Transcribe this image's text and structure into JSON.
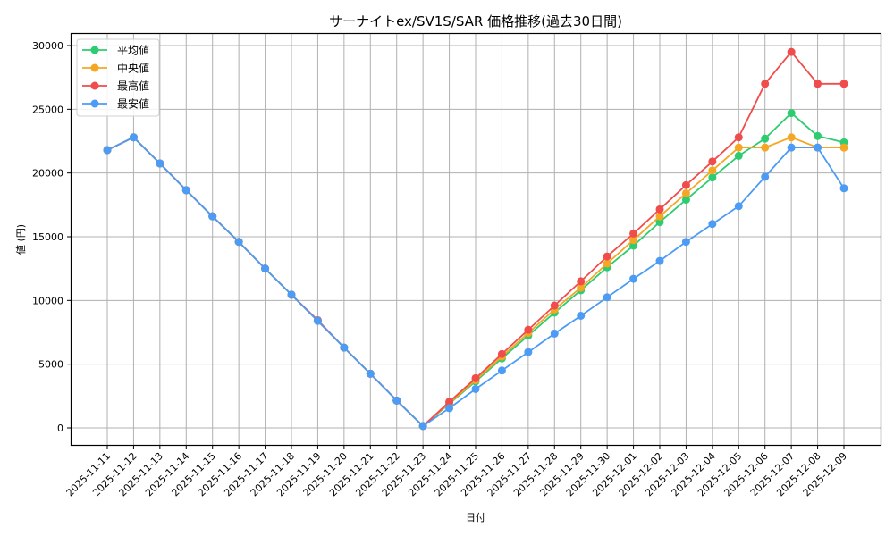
{
  "chart_data": {
    "type": "line",
    "title": "サーナイトex/SV1S/SAR 価格推移(過去30日間)",
    "xlabel": "日付",
    "ylabel": "値 (円)",
    "ylim": [
      -1300,
      31000
    ],
    "yticks": [
      0,
      5000,
      10000,
      15000,
      20000,
      25000,
      30000
    ],
    "grid": true,
    "legend_position": "upper left",
    "x": [
      "2025-11-11",
      "2025-11-12",
      "2025-11-13",
      "2025-11-14",
      "2025-11-15",
      "2025-11-16",
      "2025-11-17",
      "2025-11-18",
      "2025-11-19",
      "2025-11-20",
      "2025-11-21",
      "2025-11-22",
      "2025-11-23",
      "2025-11-24",
      "2025-11-25",
      "2025-11-26",
      "2025-11-27",
      "2025-11-28",
      "2025-11-29",
      "2025-11-30",
      "2025-12-01",
      "2025-12-02",
      "2025-12-03",
      "2025-12-04",
      "2025-12-05",
      "2025-12-06",
      "2025-12-07",
      "2025-12-08",
      "2025-12-09"
    ],
    "series": [
      {
        "name": "平均値",
        "color": "#2ecc71",
        "values": [
          21800,
          22800,
          20750,
          18650,
          16600,
          14600,
          12500,
          10450,
          8400,
          6300,
          4250,
          2150,
          150,
          1900,
          3650,
          5450,
          7250,
          9050,
          10800,
          12600,
          14300,
          16150,
          17900,
          19650,
          21350,
          22700,
          24700,
          22900,
          22400
        ]
      },
      {
        "name": "中央値",
        "color": "#f5a623",
        "values": [
          21800,
          22800,
          20750,
          18650,
          16600,
          14600,
          12500,
          10450,
          8400,
          6300,
          4250,
          2150,
          150,
          1950,
          3750,
          5600,
          7450,
          9300,
          11000,
          12900,
          14750,
          16600,
          18400,
          20200,
          22000,
          22000,
          22800,
          22000,
          22000
        ]
      },
      {
        "name": "最高値",
        "color": "#f04c4c",
        "values": [
          21800,
          22800,
          20750,
          18650,
          16600,
          14600,
          12500,
          10450,
          8450,
          6300,
          4250,
          2150,
          150,
          2050,
          3900,
          5800,
          7700,
          9600,
          11500,
          13450,
          15250,
          17150,
          19050,
          20900,
          22800,
          27000,
          29500,
          27000,
          27000
        ]
      },
      {
        "name": "最安値",
        "color": "#4c9bf5",
        "values": [
          21800,
          22800,
          20750,
          18650,
          16600,
          14600,
          12500,
          10450,
          8400,
          6300,
          4250,
          2150,
          150,
          1550,
          3050,
          4500,
          5950,
          7400,
          8800,
          10250,
          11700,
          13100,
          14600,
          16000,
          17400,
          19700,
          22000,
          22000,
          18800
        ]
      }
    ]
  }
}
